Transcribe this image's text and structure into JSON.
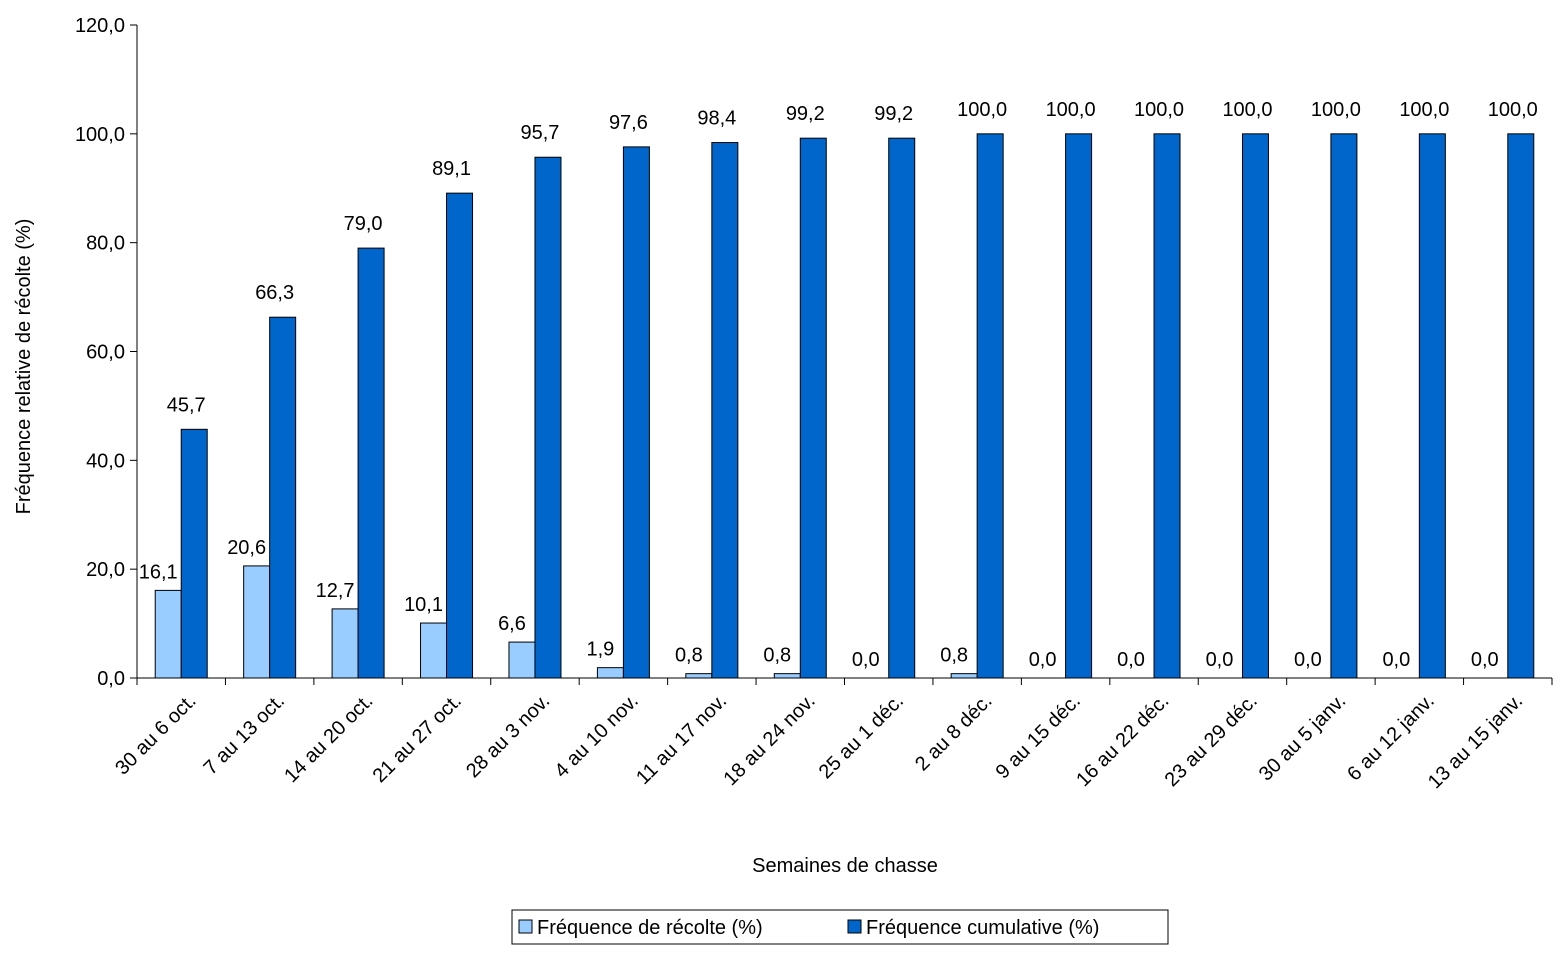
{
  "chart_data": {
    "type": "bar",
    "title": "",
    "xlabel": "Semaines de chasse",
    "ylabel": "Fréquence relative de récolte (%)",
    "ylim": [
      0,
      120
    ],
    "yticks": [
      "0,0",
      "20,0",
      "40,0",
      "60,0",
      "80,0",
      "100,0",
      "120,0"
    ],
    "grid": false,
    "legend_position": "bottom",
    "categories": [
      "30 au 6 oct.",
      "7 au 13 oct.",
      "14 au 20 oct.",
      "21 au 27 oct.",
      "28 au 3 nov.",
      "4 au 10 nov.",
      "11 au 17 nov.",
      "18 au 24 nov.",
      "25 au 1 déc.",
      "2 au 8 déc.",
      "9 au 15 déc.",
      "16 au 22 déc.",
      "23 au 29 déc.",
      "30 au 5 janv.",
      "6 au 12 janv.",
      "13 au 15 janv."
    ],
    "series": [
      {
        "name": "Fréquence de récolte (%)",
        "color": "#99ccff",
        "values": [
          16.1,
          20.6,
          12.7,
          10.1,
          6.6,
          1.9,
          0.8,
          0.8,
          0.0,
          0.8,
          0.0,
          0.0,
          0.0,
          0.0,
          0.0,
          0.0
        ],
        "labels": [
          "16,1",
          "20,6",
          "12,7",
          "10,1",
          "6,6",
          "1,9",
          "0,8",
          "0,8",
          "0,0",
          "0,8",
          "0,0",
          "0,0",
          "0,0",
          "0,0",
          "0,0",
          "0,0"
        ]
      },
      {
        "name": "Fréquence cumulative (%)",
        "color": "#0066cc",
        "values": [
          45.7,
          66.3,
          79.0,
          89.1,
          95.7,
          97.6,
          98.4,
          99.2,
          99.2,
          100.0,
          100.0,
          100.0,
          100.0,
          100.0,
          100.0,
          100.0
        ],
        "labels": [
          "45,7",
          "66,3",
          "79,0",
          "89,1",
          "95,7",
          "97,6",
          "98,4",
          "99,2",
          "99,2",
          "100,0",
          "100,0",
          "100,0",
          "100,0",
          "100,0",
          "100,0",
          "100,0"
        ]
      }
    ]
  }
}
